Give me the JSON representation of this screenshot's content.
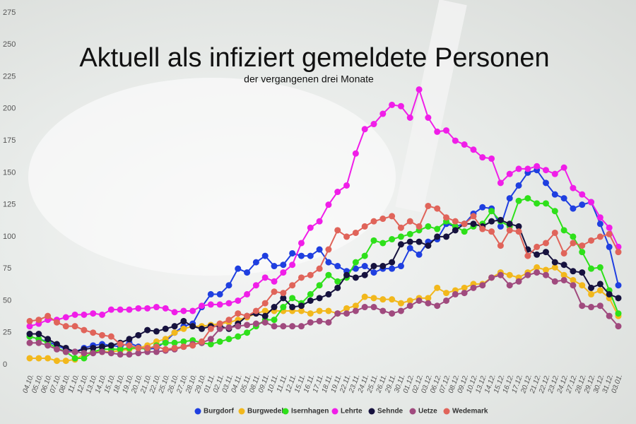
{
  "chart_data": {
    "type": "line",
    "title": "Aktuell als infiziert gemeldete Personen",
    "subtitle": "der vergangenen drei Monate",
    "categories": [
      "04.10.",
      "05.10.",
      "06.10.",
      "07.10.",
      "08.10.",
      "11.10.",
      "12.10.",
      "13.10.",
      "14.10.",
      "15.10.",
      "18.10.",
      "19.10.",
      "20.10.",
      "21.10.",
      "22.10.",
      "25.10.",
      "26.10.",
      "27.10.",
      "28.10.",
      "29.10.",
      "01.11.",
      "02.11.",
      "03.11.",
      "04.11.",
      "05.11.",
      "08.11.",
      "09.11.",
      "10.11.",
      "11.11.",
      "12.11.",
      "15.11.",
      "16.11.",
      "17.11.",
      "18.11.",
      "19.11.",
      "22.11.",
      "23.11.",
      "24.11.",
      "25.11.",
      "26.11.",
      "29.11.",
      "30.11.",
      "01.12.",
      "02.12.",
      "03.12.",
      "06.12.",
      "07.12.",
      "08.12.",
      "09.12.",
      "10.12.",
      "13.12.",
      "14.12.",
      "15.12.",
      "16.12.",
      "17.12.",
      "20.12.",
      "21.12.",
      "22.12.",
      "23.12.",
      "24.12.",
      "27.12.",
      "28.12.",
      "29.12.",
      "30.12.",
      "31.12.",
      "03.01."
    ],
    "series": [
      {
        "name": "Burgdorf",
        "color": "#1f3fe0",
        "values": [
          22,
          20,
          18,
          15,
          12,
          10,
          13,
          15,
          16,
          15,
          14,
          17,
          14,
          12,
          13,
          18,
          25,
          30,
          32,
          45,
          55,
          55,
          62,
          75,
          72,
          80,
          85,
          77,
          78,
          87,
          85,
          85,
          90,
          80,
          77,
          73,
          75,
          77,
          72,
          75,
          75,
          77,
          91,
          86,
          96,
          98,
          110,
          108,
          110,
          118,
          123,
          122,
          108,
          130,
          140,
          150,
          152,
          142,
          133,
          130,
          122,
          125,
          127,
          110,
          92,
          62
        ]
      },
      {
        "name": "Burgwedel",
        "color": "#f2b81c",
        "values": [
          5,
          5,
          5,
          3,
          3,
          4,
          8,
          10,
          10,
          10,
          11,
          12,
          13,
          15,
          18,
          20,
          25,
          28,
          30,
          30,
          31,
          32,
          33,
          35,
          37,
          40,
          42,
          42,
          42,
          42,
          42,
          40,
          42,
          42,
          40,
          44,
          46,
          53,
          52,
          51,
          51,
          48,
          50,
          52,
          52,
          60,
          56,
          58,
          60,
          63,
          63,
          68,
          72,
          70,
          68,
          72,
          76,
          74,
          76,
          70,
          66,
          62,
          55,
          58,
          52,
          38
        ]
      },
      {
        "name": "Isernhagen",
        "color": "#2ee01a",
        "values": [
          22,
          20,
          17,
          13,
          10,
          5,
          5,
          10,
          12,
          12,
          12,
          13,
          13,
          12,
          15,
          17,
          17,
          18,
          19,
          17,
          16,
          18,
          20,
          22,
          25,
          30,
          35,
          35,
          45,
          52,
          48,
          55,
          62,
          70,
          65,
          68,
          80,
          85,
          97,
          95,
          98,
          100,
          102,
          105,
          108,
          106,
          112,
          108,
          104,
          108,
          110,
          120,
          112,
          108,
          128,
          130,
          126,
          126,
          120,
          105,
          100,
          88,
          75,
          76,
          58,
          40
        ]
      },
      {
        "name": "Lehrte",
        "color": "#f01ee8",
        "values": [
          30,
          32,
          35,
          35,
          37,
          39,
          39,
          40,
          39,
          43,
          43,
          43,
          44,
          44,
          45,
          44,
          41,
          42,
          42,
          46,
          47,
          47,
          48,
          50,
          55,
          62,
          68,
          65,
          72,
          78,
          95,
          107,
          112,
          125,
          135,
          140,
          165,
          184,
          188,
          196,
          203,
          202,
          193,
          215,
          193,
          182,
          183,
          175,
          172,
          168,
          162,
          161,
          142,
          149,
          153,
          153,
          155,
          152,
          149,
          154,
          138,
          133,
          127,
          115,
          107,
          92
        ]
      },
      {
        "name": "Sehnde",
        "color": "#16123e",
        "values": [
          24,
          24,
          20,
          16,
          13,
          10,
          12,
          13,
          14,
          15,
          17,
          20,
          23,
          27,
          26,
          28,
          30,
          34,
          30,
          28,
          30,
          30,
          28,
          32,
          38,
          40,
          38,
          45,
          52,
          45,
          46,
          50,
          52,
          55,
          60,
          70,
          68,
          70,
          77,
          77,
          80,
          94,
          96,
          96,
          93,
          100,
          100,
          105,
          110,
          110,
          108,
          112,
          113,
          110,
          108,
          90,
          86,
          88,
          80,
          78,
          73,
          72,
          60,
          63,
          55,
          52
        ]
      },
      {
        "name": "Uetze",
        "color": "#a04a7e",
        "values": [
          17,
          17,
          15,
          12,
          10,
          10,
          9,
          9,
          10,
          9,
          8,
          8,
          9,
          10,
          10,
          11,
          12,
          14,
          16,
          17,
          20,
          28,
          29,
          30,
          31,
          32,
          33,
          30,
          30,
          30,
          30,
          33,
          34,
          33,
          40,
          40,
          42,
          45,
          45,
          42,
          40,
          42,
          46,
          50,
          48,
          46,
          50,
          55,
          56,
          60,
          62,
          68,
          70,
          62,
          65,
          70,
          72,
          70,
          65,
          66,
          62,
          46,
          45,
          46,
          38,
          30
        ]
      },
      {
        "name": "Wedemark",
        "color": "#e0645a",
        "values": [
          34,
          35,
          38,
          33,
          30,
          30,
          27,
          25,
          23,
          22,
          16,
          15,
          13,
          13,
          14,
          12,
          13,
          14,
          15,
          18,
          28,
          32,
          35,
          40,
          38,
          42,
          48,
          57,
          56,
          62,
          68,
          70,
          75,
          90,
          105,
          100,
          103,
          108,
          112,
          114,
          116,
          107,
          112,
          108,
          124,
          122,
          115,
          112,
          110,
          116,
          106,
          104,
          93,
          105,
          104,
          85,
          92,
          95,
          103,
          87,
          95,
          93,
          97,
          100,
          102,
          88
        ]
      }
    ],
    "ylim": [
      0,
      275
    ],
    "yticks": [
      0,
      25,
      50,
      75,
      100,
      125,
      150,
      175,
      200,
      225,
      250,
      275
    ]
  }
}
